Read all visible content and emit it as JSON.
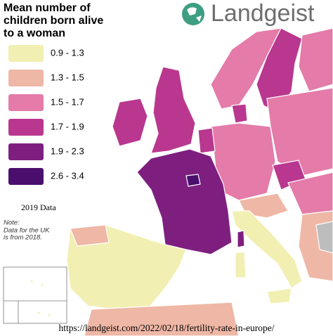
{
  "header": {
    "title_lines": [
      "Mean number of",
      "children born alive",
      "to a woman"
    ],
    "brand": "Landgeist"
  },
  "legend": [
    {
      "label": "0.9 - 1.3",
      "color": "#f2efb3"
    },
    {
      "label": "1.3 - 1.5",
      "color": "#efb7a6"
    },
    {
      "label": "1.5 - 1.7",
      "color": "#e47ba9"
    },
    {
      "label": "1.7 - 1.9",
      "color": "#b9378f"
    },
    {
      "label": "1.9 - 2.3",
      "color": "#7e1f80"
    },
    {
      "label": "2.6 - 3.4",
      "color": "#4a0f6c"
    }
  ],
  "data_year": "2019 Data",
  "note": {
    "heading": "Note:",
    "lines": [
      "Data for the UK",
      "is from 2018."
    ]
  },
  "source": "https://landgeist.com/2022/02/18/fertility-rate-in-europe/"
}
